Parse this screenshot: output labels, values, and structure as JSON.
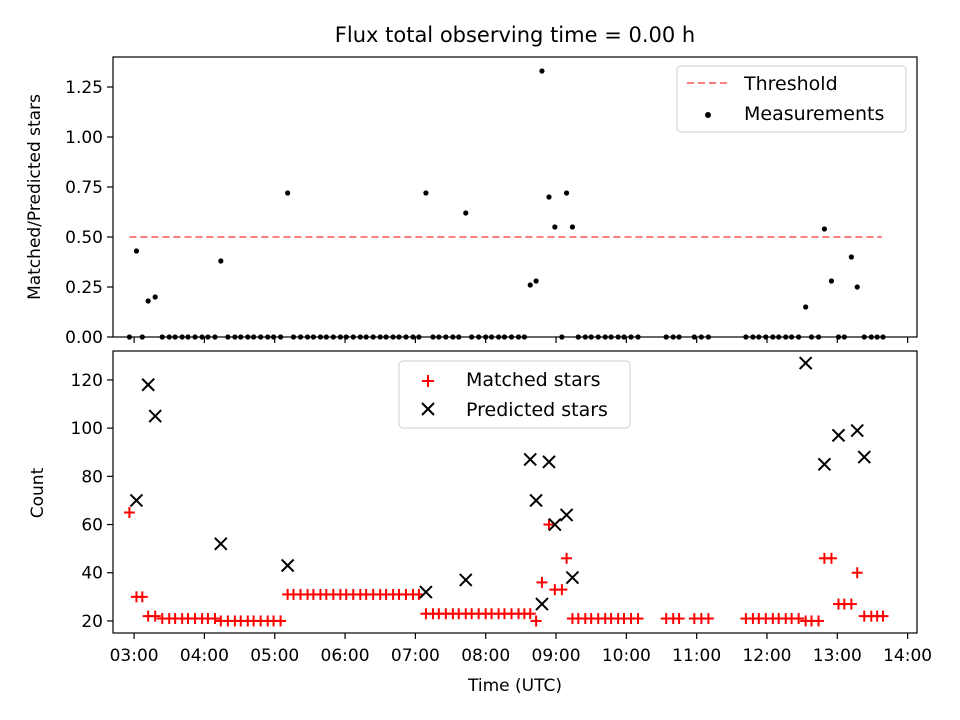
{
  "chart_data": [
    {
      "type": "scatter",
      "title": "Flux total observing time = 0.00 h",
      "xlabel": "",
      "ylabel": "Matched/Predicted stars",
      "x_range": [
        "02:42",
        "14:08"
      ],
      "ylim": [
        0.0,
        1.4
      ],
      "y_ticks": [
        "0.00",
        "0.25",
        "0.50",
        "0.75",
        "1.00",
        "1.25"
      ],
      "threshold": {
        "value": 0.5,
        "x_from": "02:56",
        "x_to": "13:38",
        "color": "#ff7f7f",
        "style": "dashed"
      },
      "legend": {
        "placement": "top-right",
        "entries": [
          "Threshold",
          "Measurements"
        ]
      },
      "series": [
        {
          "name": "Measurements",
          "color": "#000000",
          "marker": "dot",
          "points": [
            [
              "02:56",
              0.0
            ],
            [
              "03:02",
              0.43
            ],
            [
              "03:07",
              0.0
            ],
            [
              "03:12",
              0.18
            ],
            [
              "03:18",
              0.2
            ],
            [
              "03:24",
              0.0
            ],
            [
              "03:30",
              0.0
            ],
            [
              "03:35",
              0.0
            ],
            [
              "03:41",
              0.0
            ],
            [
              "03:46",
              0.0
            ],
            [
              "03:52",
              0.0
            ],
            [
              "03:58",
              0.0
            ],
            [
              "04:03",
              0.0
            ],
            [
              "04:09",
              0.0
            ],
            [
              "04:14",
              0.38
            ],
            [
              "04:20",
              0.0
            ],
            [
              "04:26",
              0.0
            ],
            [
              "04:31",
              0.0
            ],
            [
              "04:37",
              0.0
            ],
            [
              "04:42",
              0.0
            ],
            [
              "04:48",
              0.0
            ],
            [
              "04:54",
              0.0
            ],
            [
              "04:59",
              0.0
            ],
            [
              "05:05",
              0.0
            ],
            [
              "05:11",
              0.72
            ],
            [
              "05:16",
              0.0
            ],
            [
              "05:22",
              0.0
            ],
            [
              "05:28",
              0.0
            ],
            [
              "05:33",
              0.0
            ],
            [
              "05:39",
              0.0
            ],
            [
              "05:44",
              0.0
            ],
            [
              "05:50",
              0.0
            ],
            [
              "05:56",
              0.0
            ],
            [
              "06:01",
              0.0
            ],
            [
              "06:07",
              0.0
            ],
            [
              "06:13",
              0.0
            ],
            [
              "06:18",
              0.0
            ],
            [
              "06:24",
              0.0
            ],
            [
              "06:30",
              0.0
            ],
            [
              "06:35",
              0.0
            ],
            [
              "06:41",
              0.0
            ],
            [
              "06:46",
              0.0
            ],
            [
              "06:52",
              0.0
            ],
            [
              "06:58",
              0.0
            ],
            [
              "07:03",
              0.0
            ],
            [
              "07:09",
              0.72
            ],
            [
              "07:15",
              0.0
            ],
            [
              "07:20",
              0.0
            ],
            [
              "07:26",
              0.0
            ],
            [
              "07:32",
              0.0
            ],
            [
              "07:37",
              0.0
            ],
            [
              "07:43",
              0.62
            ],
            [
              "07:48",
              0.0
            ],
            [
              "07:54",
              0.0
            ],
            [
              "08:00",
              0.0
            ],
            [
              "08:05",
              0.0
            ],
            [
              "08:11",
              0.0
            ],
            [
              "08:16",
              0.0
            ],
            [
              "08:22",
              0.0
            ],
            [
              "08:28",
              0.0
            ],
            [
              "08:33",
              0.0
            ],
            [
              "08:38",
              0.26
            ],
            [
              "08:43",
              0.28
            ],
            [
              "08:48",
              1.33
            ],
            [
              "08:54",
              0.7
            ],
            [
              "08:59",
              0.55
            ],
            [
              "09:05",
              0.0
            ],
            [
              "09:09",
              0.72
            ],
            [
              "09:14",
              0.55
            ],
            [
              "09:19",
              0.0
            ],
            [
              "09:25",
              0.0
            ],
            [
              "09:30",
              0.0
            ],
            [
              "09:36",
              0.0
            ],
            [
              "09:42",
              0.0
            ],
            [
              "09:47",
              0.0
            ],
            [
              "09:53",
              0.0
            ],
            [
              "09:58",
              0.0
            ],
            [
              "10:04",
              0.0
            ],
            [
              "10:10",
              0.0
            ],
            [
              "10:34",
              0.0
            ],
            [
              "10:40",
              0.0
            ],
            [
              "10:45",
              0.0
            ],
            [
              "10:58",
              0.0
            ],
            [
              "11:04",
              0.0
            ],
            [
              "11:10",
              0.0
            ],
            [
              "11:42",
              0.0
            ],
            [
              "11:48",
              0.0
            ],
            [
              "11:53",
              0.0
            ],
            [
              "11:59",
              0.0
            ],
            [
              "12:05",
              0.0
            ],
            [
              "12:10",
              0.0
            ],
            [
              "12:16",
              0.0
            ],
            [
              "12:21",
              0.0
            ],
            [
              "12:27",
              0.0
            ],
            [
              "12:33",
              0.15
            ],
            [
              "12:38",
              0.0
            ],
            [
              "12:44",
              0.0
            ],
            [
              "12:49",
              0.54
            ],
            [
              "12:55",
              0.28
            ],
            [
              "13:01",
              0.0
            ],
            [
              "13:06",
              0.0
            ],
            [
              "13:12",
              0.4
            ],
            [
              "13:17",
              0.25
            ],
            [
              "13:23",
              0.0
            ],
            [
              "13:29",
              0.0
            ],
            [
              "13:34",
              0.0
            ],
            [
              "13:39",
              0.0
            ]
          ]
        }
      ]
    },
    {
      "type": "scatter",
      "title": "",
      "xlabel": "Time (UTC)",
      "ylabel": "Count",
      "x_range": [
        "02:42",
        "14:08"
      ],
      "x_ticks": [
        "03:00",
        "04:00",
        "05:00",
        "06:00",
        "07:00",
        "08:00",
        "09:00",
        "10:00",
        "11:00",
        "12:00",
        "13:00",
        "14:00"
      ],
      "ylim": [
        15,
        132
      ],
      "y_ticks": [
        "20",
        "40",
        "60",
        "80",
        "100",
        "120"
      ],
      "legend": {
        "placement": "top-center",
        "entries": [
          "Matched stars",
          "Predicted stars"
        ]
      },
      "series": [
        {
          "name": "Matched stars",
          "color": "#ff0000",
          "marker": "plus",
          "points": [
            [
              "02:56",
              65
            ],
            [
              "03:02",
              30
            ],
            [
              "03:07",
              30
            ],
            [
              "03:12",
              22
            ],
            [
              "03:18",
              22
            ],
            [
              "03:24",
              21
            ],
            [
              "03:30",
              21
            ],
            [
              "03:35",
              21
            ],
            [
              "03:41",
              21
            ],
            [
              "03:46",
              21
            ],
            [
              "03:52",
              21
            ],
            [
              "03:58",
              21
            ],
            [
              "04:03",
              21
            ],
            [
              "04:09",
              21
            ],
            [
              "04:14",
              20
            ],
            [
              "04:20",
              20
            ],
            [
              "04:26",
              20
            ],
            [
              "04:31",
              20
            ],
            [
              "04:37",
              20
            ],
            [
              "04:42",
              20
            ],
            [
              "04:48",
              20
            ],
            [
              "04:54",
              20
            ],
            [
              "04:59",
              20
            ],
            [
              "05:05",
              20
            ],
            [
              "05:11",
              31
            ],
            [
              "05:16",
              31
            ],
            [
              "05:22",
              31
            ],
            [
              "05:28",
              31
            ],
            [
              "05:33",
              31
            ],
            [
              "05:39",
              31
            ],
            [
              "05:44",
              31
            ],
            [
              "05:50",
              31
            ],
            [
              "05:56",
              31
            ],
            [
              "06:01",
              31
            ],
            [
              "06:07",
              31
            ],
            [
              "06:13",
              31
            ],
            [
              "06:18",
              31
            ],
            [
              "06:24",
              31
            ],
            [
              "06:30",
              31
            ],
            [
              "06:35",
              31
            ],
            [
              "06:41",
              31
            ],
            [
              "06:46",
              31
            ],
            [
              "06:52",
              31
            ],
            [
              "06:58",
              31
            ],
            [
              "07:03",
              31
            ],
            [
              "07:09",
              23
            ],
            [
              "07:15",
              23
            ],
            [
              "07:20",
              23
            ],
            [
              "07:26",
              23
            ],
            [
              "07:32",
              23
            ],
            [
              "07:37",
              23
            ],
            [
              "07:43",
              23
            ],
            [
              "07:48",
              23
            ],
            [
              "07:54",
              23
            ],
            [
              "08:00",
              23
            ],
            [
              "08:05",
              23
            ],
            [
              "08:11",
              23
            ],
            [
              "08:16",
              23
            ],
            [
              "08:22",
              23
            ],
            [
              "08:28",
              23
            ],
            [
              "08:33",
              23
            ],
            [
              "08:38",
              23
            ],
            [
              "08:43",
              20
            ],
            [
              "08:48",
              36
            ],
            [
              "08:54",
              60
            ],
            [
              "08:59",
              33
            ],
            [
              "09:05",
              33
            ],
            [
              "09:09",
              46
            ],
            [
              "09:14",
              21
            ],
            [
              "09:19",
              21
            ],
            [
              "09:25",
              21
            ],
            [
              "09:30",
              21
            ],
            [
              "09:36",
              21
            ],
            [
              "09:42",
              21
            ],
            [
              "09:47",
              21
            ],
            [
              "09:53",
              21
            ],
            [
              "09:58",
              21
            ],
            [
              "10:04",
              21
            ],
            [
              "10:10",
              21
            ],
            [
              "10:34",
              21
            ],
            [
              "10:40",
              21
            ],
            [
              "10:45",
              21
            ],
            [
              "10:58",
              21
            ],
            [
              "11:04",
              21
            ],
            [
              "11:10",
              21
            ],
            [
              "11:42",
              21
            ],
            [
              "11:48",
              21
            ],
            [
              "11:53",
              21
            ],
            [
              "11:59",
              21
            ],
            [
              "12:05",
              21
            ],
            [
              "12:10",
              21
            ],
            [
              "12:16",
              21
            ],
            [
              "12:21",
              21
            ],
            [
              "12:27",
              21
            ],
            [
              "12:33",
              20
            ],
            [
              "12:38",
              20
            ],
            [
              "12:44",
              20
            ],
            [
              "12:49",
              46
            ],
            [
              "12:55",
              46
            ],
            [
              "13:01",
              27
            ],
            [
              "13:06",
              27
            ],
            [
              "13:12",
              27
            ],
            [
              "13:17",
              40
            ],
            [
              "13:23",
              22
            ],
            [
              "13:29",
              22
            ],
            [
              "13:34",
              22
            ],
            [
              "13:39",
              22
            ]
          ]
        },
        {
          "name": "Predicted stars",
          "color": "#000000",
          "marker": "x",
          "points": [
            [
              "03:02",
              70
            ],
            [
              "03:12",
              118
            ],
            [
              "03:18",
              105
            ],
            [
              "04:14",
              52
            ],
            [
              "05:11",
              43
            ],
            [
              "07:09",
              32
            ],
            [
              "07:43",
              37
            ],
            [
              "08:38",
              87
            ],
            [
              "08:43",
              70
            ],
            [
              "08:48",
              27
            ],
            [
              "08:54",
              86
            ],
            [
              "08:59",
              60
            ],
            [
              "09:09",
              64
            ],
            [
              "09:14",
              38
            ],
            [
              "12:33",
              127
            ],
            [
              "12:49",
              85
            ],
            [
              "13:01",
              97
            ],
            [
              "13:17",
              99
            ],
            [
              "13:23",
              88
            ]
          ]
        }
      ]
    }
  ]
}
